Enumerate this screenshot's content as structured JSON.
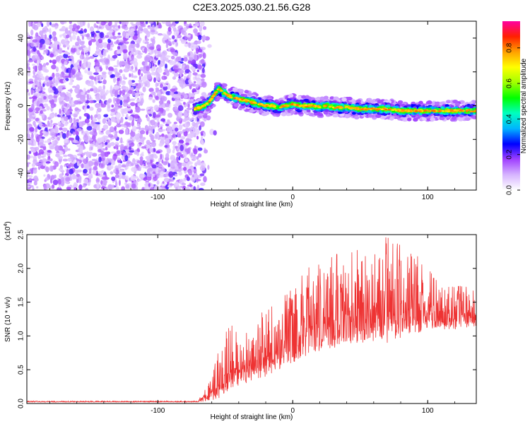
{
  "title": "C2E3.2025.030.21.56.G28",
  "charts": {
    "spectrogram": {
      "type": "heatmap",
      "xlabel": "Height of straight line (km)",
      "ylabel": "Frequency (Hz)",
      "xlim": [
        -197,
        136
      ],
      "ylim": [
        -50,
        50
      ],
      "x_ticks": [
        -100,
        0,
        100
      ],
      "x_tick_labels": [
        "-100",
        "0",
        "100"
      ],
      "y_ticks": [
        -40,
        -20,
        0,
        20,
        40
      ],
      "y_tick_labels": [
        "-40",
        "-20",
        "0",
        "20",
        "40"
      ],
      "noise_region_x": [
        -197,
        -65
      ],
      "signal_track": {
        "x": [
          -73,
          -68,
          -62,
          -55,
          -50,
          -45,
          -40,
          -35,
          -30,
          -25,
          -20,
          -15,
          -10,
          -5,
          0,
          5,
          10,
          15,
          20,
          25,
          30,
          40,
          50,
          60,
          70,
          80,
          90,
          100,
          110,
          120,
          130,
          136
        ],
        "y": [
          -2,
          -1,
          2,
          10,
          7,
          5,
          4,
          3,
          2,
          1,
          0,
          0,
          -1,
          0,
          1,
          0,
          0,
          0,
          -1,
          0,
          -1,
          -1,
          -2,
          -2,
          -2,
          -3,
          -3,
          -3,
          -3,
          -3,
          -3,
          -3
        ]
      },
      "colorbar": {
        "label": "Normalized spectral amplitude",
        "range": [
          0,
          0.95
        ],
        "ticks": [
          0.0,
          0.2,
          0.4,
          0.6,
          0.8
        ],
        "tick_labels": [
          "0.0",
          "0.2",
          "0.4",
          "0.6",
          "0.8"
        ],
        "colors": [
          "#ffffff",
          "#d6b4ff",
          "#a040ff",
          "#0000ff",
          "#00b4ff",
          "#00ffc0",
          "#00ff00",
          "#a0ff00",
          "#ffff00",
          "#ffa000",
          "#ff2000",
          "#ff00a0"
        ]
      }
    },
    "snr": {
      "type": "line",
      "xlabel": "Height of straight line (km)",
      "ylabel": "SNR (10 * v/v)",
      "scale_label_prefix": "(x10",
      "scale_label_exp": "4",
      "scale_label_suffix": ")",
      "xlim": [
        -197,
        136
      ],
      "ylim": [
        0,
        2.5
      ],
      "x_ticks": [
        -100,
        0,
        100
      ],
      "x_tick_labels": [
        "-100",
        "0",
        "100"
      ],
      "y_ticks": [
        0.0,
        0.5,
        1.0,
        1.5,
        2.0,
        2.5
      ],
      "y_tick_labels": [
        "0.0",
        "0.5",
        "1.0",
        "1.5",
        "2.0",
        "2.5"
      ],
      "line_color": "#ee3333",
      "envelope": {
        "x": [
          -197,
          -70,
          -60,
          -50,
          -45,
          -40,
          -30,
          -20,
          -10,
          0,
          10,
          20,
          30,
          40,
          50,
          60,
          70,
          80,
          90,
          100,
          110,
          120,
          136
        ],
        "baseline": [
          0.02,
          0.02,
          0.05,
          0.1,
          0.2,
          0.25,
          0.35,
          0.4,
          0.5,
          0.6,
          0.7,
          0.75,
          0.8,
          0.85,
          0.9,
          0.9,
          0.9,
          0.95,
          1.0,
          1.05,
          1.1,
          1.1,
          1.15
        ],
        "peak": [
          0.04,
          0.04,
          0.45,
          1.1,
          1.2,
          1.0,
          1.2,
          1.55,
          1.6,
          1.75,
          2.0,
          2.1,
          2.25,
          2.45,
          2.3,
          2.4,
          2.5,
          2.35,
          2.25,
          2.0,
          1.8,
          1.75,
          1.75
        ]
      }
    }
  }
}
